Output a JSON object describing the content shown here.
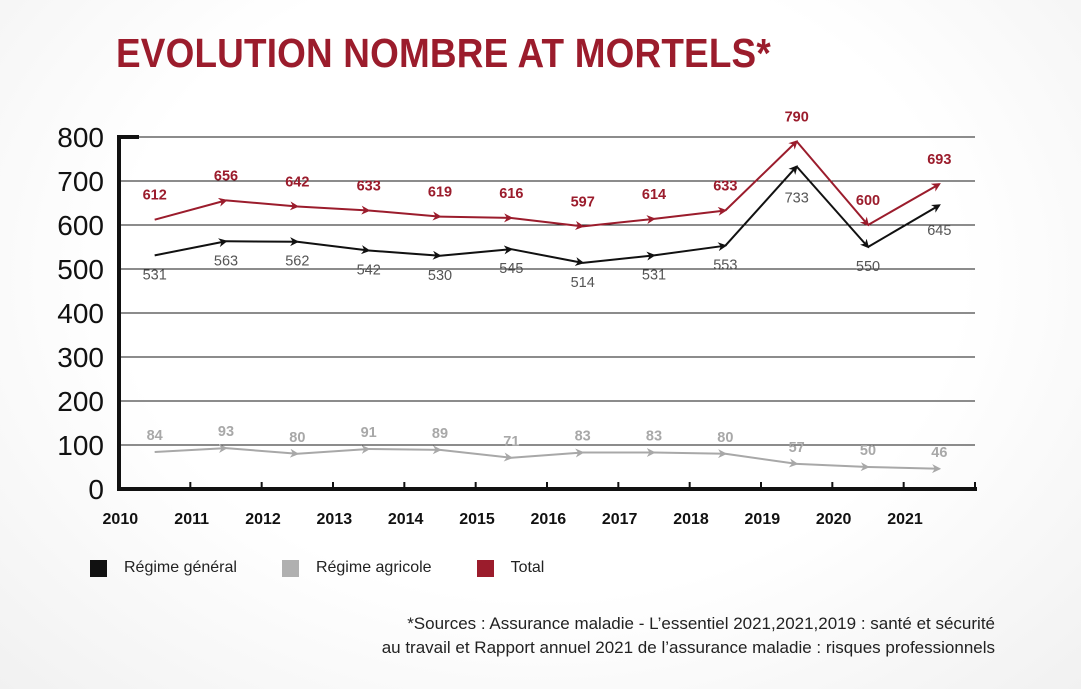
{
  "chart_data": {
    "type": "line",
    "title": "EVOLUTION NOMBRE AT MORTELS*",
    "x_tick_labels": [
      "2010",
      "2011",
      "2012",
      "2013",
      "2014",
      "2015",
      "2016",
      "2017",
      "2018",
      "2019",
      "2020",
      "2021"
    ],
    "x": [
      2010,
      2011,
      2012,
      2013,
      2014,
      2015,
      2016,
      2017,
      2018,
      2019,
      2020,
      2021
    ],
    "y_ticks": [
      "800",
      "700",
      "600",
      "500",
      "400",
      "300",
      "200",
      "100",
      "0"
    ],
    "ylim": [
      0,
      800
    ],
    "grid": true,
    "series": [
      {
        "name": "Total",
        "color": "#9b1c2c",
        "values": [
          612,
          656,
          642,
          633,
          619,
          616,
          597,
          614,
          633,
          790,
          600,
          693
        ]
      },
      {
        "name": "Régime général",
        "color": "#111111",
        "values": [
          531,
          563,
          562,
          542,
          530,
          545,
          514,
          531,
          553,
          733,
          550,
          645
        ]
      },
      {
        "name": "Régime agricole",
        "color": "#a8a8a8",
        "values": [
          84,
          93,
          80,
          91,
          89,
          71,
          83,
          83,
          80,
          57,
          50,
          46
        ]
      }
    ],
    "legend_placement": "bottom-left"
  },
  "legend": [
    {
      "label": "Régime général",
      "color": "#111111"
    },
    {
      "label": "Régime agricole",
      "color": "#b0b0b0"
    },
    {
      "label": "Total",
      "color": "#9b1c2c"
    }
  ],
  "source": {
    "line1": "*Sources : Assurance maladie - L’essentiel 2021,2021,2019 : santé et sécurité",
    "line2": "au travail et Rapport annuel 2021 de l’assurance maladie : risques professionnels"
  }
}
